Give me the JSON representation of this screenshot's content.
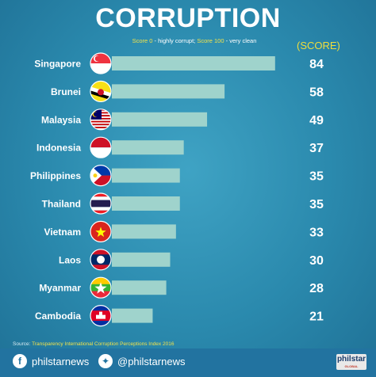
{
  "header": {
    "title": "CORRUPTION",
    "subtitle_a": "Score 0",
    "subtitle_b": " - highly corrupt; ",
    "subtitle_c": "Score 100",
    "subtitle_d": " - very clean",
    "score_label": "(SCORE)"
  },
  "chart_data": {
    "type": "bar",
    "orientation": "horizontal",
    "categories": [
      "Singapore",
      "Brunei",
      "Malaysia",
      "Indonesia",
      "Philippines",
      "Thailand",
      "Vietnam",
      "Laos",
      "Myanmar",
      "Cambodia"
    ],
    "values": [
      84,
      58,
      49,
      37,
      35,
      35,
      33,
      30,
      28,
      21
    ],
    "xlim": [
      0,
      100
    ],
    "grid": false,
    "legend": "none",
    "bar_color": "#9fd3cc",
    "value_color": "#ffffff"
  },
  "flags": [
    "singapore-flag-icon",
    "brunei-flag-icon",
    "malaysia-flag-icon",
    "indonesia-flag-icon",
    "philippines-flag-icon",
    "thailand-flag-icon",
    "vietnam-flag-icon",
    "laos-flag-icon",
    "myanmar-flag-icon",
    "cambodia-flag-icon"
  ],
  "footer": {
    "source_prefix": "Source: ",
    "source_name": "Transparency International Corruption Perceptions Index 2016",
    "facebook": "philstarnews",
    "twitter": "@philstarnews",
    "logo": "philstar",
    "logo_sub": "GLOBAL"
  }
}
